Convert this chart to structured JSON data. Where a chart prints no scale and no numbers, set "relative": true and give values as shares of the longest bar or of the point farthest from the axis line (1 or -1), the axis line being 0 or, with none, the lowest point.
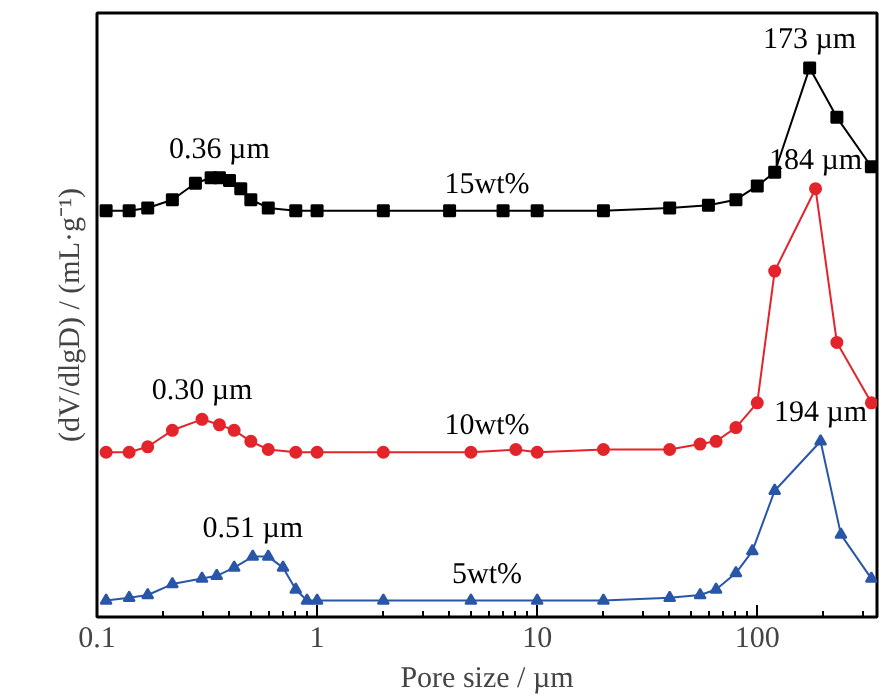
{
  "chart_data": {
    "type": "line",
    "xlabel": "Pore size / µm",
    "ylabel": "(dV/dlgD) / (mL·g⁻¹)",
    "relative": true,
    "log": "x",
    "xlim": [
      0.1,
      350
    ],
    "xticks": [
      0.1,
      1,
      10,
      100
    ],
    "grid": false,
    "series": [
      {
        "name": "15wt%",
        "color": "#000000",
        "marker": "square",
        "x": [
          0.11,
          0.14,
          0.17,
          0.22,
          0.28,
          0.33,
          0.36,
          0.4,
          0.45,
          0.5,
          0.6,
          0.8,
          1,
          2,
          4,
          7,
          10,
          20,
          40,
          60,
          80,
          100,
          120,
          173,
          230,
          330
        ],
        "values": [
          0.74,
          0.74,
          0.745,
          0.76,
          0.79,
          0.8,
          0.8,
          0.795,
          0.78,
          0.76,
          0.745,
          0.74,
          0.74,
          0.74,
          0.74,
          0.74,
          0.74,
          0.74,
          0.745,
          0.75,
          0.76,
          0.785,
          0.81,
          1.0,
          0.91,
          0.82
        ]
      },
      {
        "name": "10wt%",
        "color": "#e3242b",
        "marker": "circle",
        "x": [
          0.11,
          0.14,
          0.17,
          0.22,
          0.3,
          0.36,
          0.42,
          0.5,
          0.6,
          0.8,
          1,
          2,
          5,
          8,
          10,
          20,
          40,
          55,
          65,
          80,
          100,
          120,
          184,
          230,
          330
        ],
        "values": [
          0.3,
          0.3,
          0.31,
          0.34,
          0.36,
          0.35,
          0.34,
          0.32,
          0.305,
          0.3,
          0.3,
          0.3,
          0.3,
          0.305,
          0.3,
          0.305,
          0.305,
          0.315,
          0.32,
          0.345,
          0.39,
          0.63,
          0.78,
          0.5,
          0.39
        ]
      },
      {
        "name": "5wt%",
        "color": "#2a56a8",
        "marker": "triangle",
        "x": [
          0.11,
          0.14,
          0.17,
          0.22,
          0.3,
          0.35,
          0.42,
          0.51,
          0.6,
          0.7,
          0.8,
          0.9,
          1,
          2,
          5,
          10,
          20,
          40,
          55,
          65,
          80,
          95,
          120,
          194,
          240,
          330
        ],
        "values": [
          0.03,
          0.035,
          0.04,
          0.06,
          0.07,
          0.075,
          0.09,
          0.11,
          0.11,
          0.09,
          0.05,
          0.03,
          0.03,
          0.03,
          0.03,
          0.03,
          0.03,
          0.035,
          0.04,
          0.05,
          0.08,
          0.12,
          0.23,
          0.32,
          0.15,
          0.07
        ]
      }
    ],
    "annotations": [
      {
        "text": "0.36 µm",
        "x": 0.36,
        "y": 0.8
      },
      {
        "text": "173 µm",
        "x": 173,
        "y": 1.0
      },
      {
        "text": "0.30 µm",
        "x": 0.3,
        "y": 0.36
      },
      {
        "text": "184 µm",
        "x": 184,
        "y": 0.78
      },
      {
        "text": "0.51 µm",
        "x": 0.51,
        "y": 0.11
      },
      {
        "text": "194 µm",
        "x": 194,
        "y": 0.32
      }
    ]
  }
}
